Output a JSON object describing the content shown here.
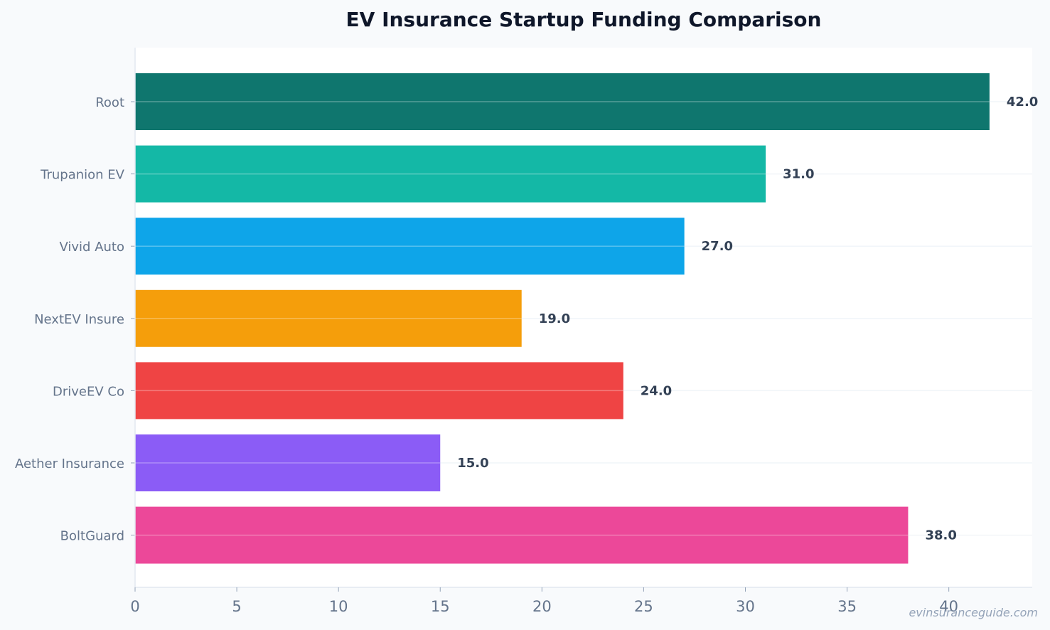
{
  "chart_data": {
    "type": "bar",
    "orientation": "horizontal",
    "title": "EV Insurance Startup Funding Comparison",
    "xlabel": "",
    "ylabel": "",
    "categories": [
      "Root",
      "Trupanion EV",
      "Vivid Auto",
      "NextEV Insure",
      "DriveEV Co",
      "Aether Insurance",
      "BoltGuard"
    ],
    "values": [
      42.0,
      31.0,
      27.0,
      19.0,
      24.0,
      15.0,
      38.0
    ],
    "value_labels": [
      "42.0",
      "31.0",
      "27.0",
      "19.0",
      "24.0",
      "15.0",
      "38.0"
    ],
    "colors": [
      "#0f766e",
      "#14b8a6",
      "#0ea5e9",
      "#f59e0b",
      "#ef4444",
      "#8b5cf6",
      "#ec4899"
    ],
    "xlim": [
      0,
      44.1
    ],
    "xticks": [
      0,
      5,
      10,
      15,
      20,
      25,
      30,
      35,
      40
    ],
    "xtick_labels": [
      "0",
      "5",
      "10",
      "15",
      "20",
      "25",
      "30",
      "35",
      "40"
    ],
    "grid": "horizontal",
    "legend": "none"
  },
  "watermark": "evinsuranceguide.com"
}
